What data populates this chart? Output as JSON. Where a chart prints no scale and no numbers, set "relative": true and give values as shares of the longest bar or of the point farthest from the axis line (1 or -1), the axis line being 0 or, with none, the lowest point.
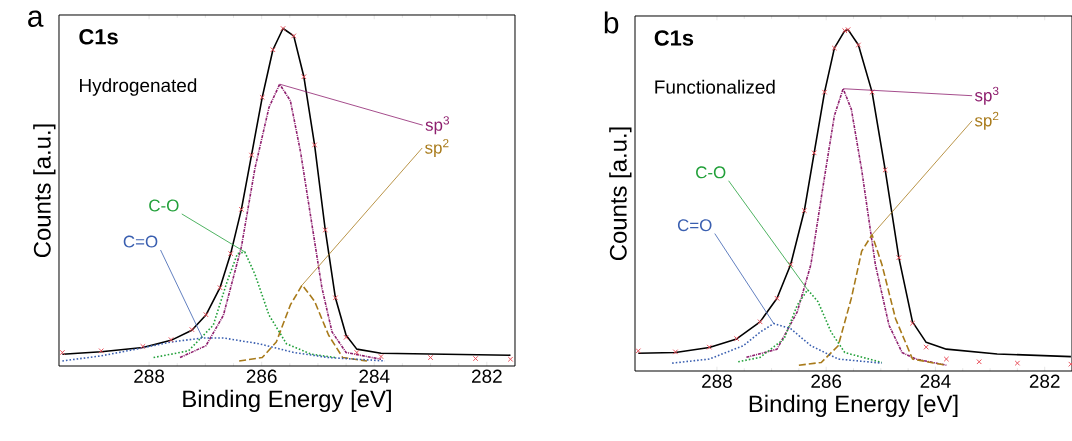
{
  "chart_data": [
    {
      "type": "line",
      "title": "C1s",
      "subtitle": "Hydrogenated",
      "xlabel": "Binding Energy [eV]",
      "ylabel": "Counts [a.u.]",
      "annotations": [
        "a"
      ],
      "relative": true,
      "legend": false,
      "grid": false,
      "xlim": [
        289.6,
        281.5
      ],
      "xticks": [
        288,
        286,
        284,
        282
      ],
      "series": [
        {
          "type": "scatter",
          "marker": "cross",
          "color": "#e8505b",
          "x": [
            289.54,
            288.85,
            288.11,
            287.61,
            287.24,
            286.99,
            286.74,
            286.55,
            286.36,
            286.18,
            285.99,
            285.8,
            285.62,
            285.43,
            285.25,
            285.06,
            284.87,
            284.69,
            284.5,
            284.31,
            283.88,
            283.0,
            282.2,
            281.58
          ],
          "values": [
            0.04,
            0.045,
            0.058,
            0.078,
            0.108,
            0.152,
            0.232,
            0.333,
            0.464,
            0.625,
            0.796,
            0.937,
            1.0,
            0.978,
            0.857,
            0.655,
            0.403,
            0.202,
            0.085,
            0.04,
            0.028,
            0.025,
            0.022,
            0.02
          ]
        },
        {
          "line_style": "solid",
          "color": "#000000",
          "x": [
            289.54,
            288.85,
            288.11,
            287.61,
            287.24,
            286.99,
            286.74,
            286.55,
            286.36,
            286.18,
            285.99,
            285.8,
            285.62,
            285.43,
            285.25,
            285.06,
            284.87,
            284.69,
            284.5,
            284.31,
            283.88,
            281.58
          ],
          "values": [
            0.035,
            0.042,
            0.055,
            0.076,
            0.106,
            0.151,
            0.232,
            0.333,
            0.464,
            0.625,
            0.796,
            0.937,
            1.0,
            0.978,
            0.857,
            0.655,
            0.403,
            0.202,
            0.091,
            0.05,
            0.038,
            0.032
          ]
        },
        {
          "name": "sp$^{3}$",
          "line_style": "dashdotted",
          "color": "#8e1f6e",
          "x": [
            287.45,
            286.99,
            286.68,
            286.36,
            286.12,
            285.87,
            285.68,
            285.49,
            285.31,
            285.12,
            284.93,
            284.75,
            284.5,
            283.88
          ],
          "values": [
            0.025,
            0.06,
            0.15,
            0.353,
            0.585,
            0.766,
            0.835,
            0.786,
            0.635,
            0.433,
            0.232,
            0.101,
            0.04,
            0.02
          ]
        },
        {
          "name": "sp$^{2}$",
          "line_style": "dashed",
          "color": "#a87a1a",
          "x": [
            286.4,
            285.99,
            285.74,
            285.49,
            285.28,
            285.06,
            284.81,
            284.56,
            284.13
          ],
          "values": [
            0.015,
            0.025,
            0.071,
            0.181,
            0.24,
            0.192,
            0.091,
            0.025,
            0.015
          ]
        },
        {
          "name": "C-O",
          "line_style": "dotted",
          "color": "#22a03a",
          "x": [
            287.92,
            287.3,
            286.86,
            286.61,
            286.43,
            286.3,
            286.12,
            285.87,
            285.56,
            285.12,
            284.69
          ],
          "values": [
            0.025,
            0.045,
            0.121,
            0.252,
            0.333,
            0.338,
            0.272,
            0.151,
            0.066,
            0.035,
            0.025
          ]
        },
        {
          "name": "C=O",
          "line_style": "dotted",
          "color": "#3a5fb0",
          "x": [
            289.54,
            288.85,
            288.23,
            287.61,
            287.05,
            286.68,
            286.05,
            285.43,
            284.81,
            283.81
          ],
          "values": [
            0.015,
            0.03,
            0.05,
            0.071,
            0.083,
            0.083,
            0.066,
            0.04,
            0.025,
            0.015
          ]
        }
      ]
    },
    {
      "type": "line",
      "title": "C1s",
      "subtitle": "Functionalized",
      "xlabel": "Binding Energy [eV]",
      "ylabel": "Counts [a.u.]",
      "annotations": [
        "b"
      ],
      "relative": true,
      "legend": false,
      "grid": false,
      "xlim": [
        289.5,
        281.5
      ],
      "xticks": [
        288,
        286,
        284,
        282
      ],
      "series": [
        {
          "type": "scatter",
          "marker": "cross",
          "color": "#e8505b",
          "x": [
            289.44,
            288.76,
            288.14,
            287.64,
            287.21,
            286.9,
            286.65,
            286.4,
            286.22,
            286.03,
            285.85,
            285.66,
            285.6,
            285.41,
            285.16,
            284.92,
            284.67,
            284.42,
            284.17,
            283.8,
            283.2,
            282.5,
            281.52
          ],
          "values": [
            0.059,
            0.056,
            0.07,
            0.095,
            0.144,
            0.213,
            0.312,
            0.47,
            0.639,
            0.817,
            0.946,
            0.997,
            1.0,
            0.955,
            0.817,
            0.589,
            0.332,
            0.14,
            0.07,
            0.035,
            0.027,
            0.023,
            0.02
          ]
        },
        {
          "line_style": "solid",
          "color": "#000000",
          "x": [
            289.44,
            288.76,
            288.14,
            287.64,
            287.21,
            286.9,
            286.65,
            286.4,
            286.22,
            286.03,
            285.85,
            285.66,
            285.6,
            285.41,
            285.16,
            284.92,
            284.67,
            284.42,
            284.17,
            283.8,
            282.87,
            281.52
          ],
          "values": [
            0.052,
            0.054,
            0.069,
            0.094,
            0.144,
            0.213,
            0.312,
            0.47,
            0.639,
            0.817,
            0.946,
            0.997,
            1.0,
            0.955,
            0.817,
            0.589,
            0.332,
            0.144,
            0.084,
            0.064,
            0.05,
            0.042
          ]
        },
        {
          "name": "sp$^{3}$",
          "line_style": "dashdotted",
          "color": "#8e1f6e",
          "x": [
            287.46,
            286.9,
            286.53,
            286.28,
            286.03,
            285.85,
            285.69,
            285.54,
            285.35,
            285.1,
            284.85,
            284.61,
            284.36,
            283.8
          ],
          "values": [
            0.04,
            0.064,
            0.173,
            0.312,
            0.569,
            0.748,
            0.827,
            0.767,
            0.589,
            0.312,
            0.134,
            0.054,
            0.035,
            0.017
          ]
        },
        {
          "name": "sp$^{2}$",
          "line_style": "dashed",
          "color": "#a87a1a",
          "x": [
            286.5,
            286.09,
            285.78,
            285.54,
            285.35,
            285.16,
            284.98,
            284.73,
            284.42,
            283.8
          ],
          "values": [
            0.017,
            0.025,
            0.074,
            0.213,
            0.351,
            0.399,
            0.312,
            0.153,
            0.035,
            0.017
          ]
        },
        {
          "name": "C-O",
          "line_style": "dotted",
          "color": "#22a03a",
          "x": [
            287.61,
            287.21,
            286.77,
            286.53,
            286.34,
            286.15,
            285.91,
            285.66,
            284.98
          ],
          "values": [
            0.027,
            0.04,
            0.094,
            0.193,
            0.238,
            0.203,
            0.114,
            0.054,
            0.025
          ]
        },
        {
          "name": "C=O",
          "line_style": "dotted",
          "color": "#3a5fb0",
          "x": [
            288.82,
            288.14,
            287.52,
            287.21,
            286.96,
            286.65,
            286.28,
            285.78,
            284.98
          ],
          "values": [
            0.023,
            0.035,
            0.074,
            0.114,
            0.139,
            0.124,
            0.074,
            0.035,
            0.023
          ]
        }
      ]
    }
  ]
}
